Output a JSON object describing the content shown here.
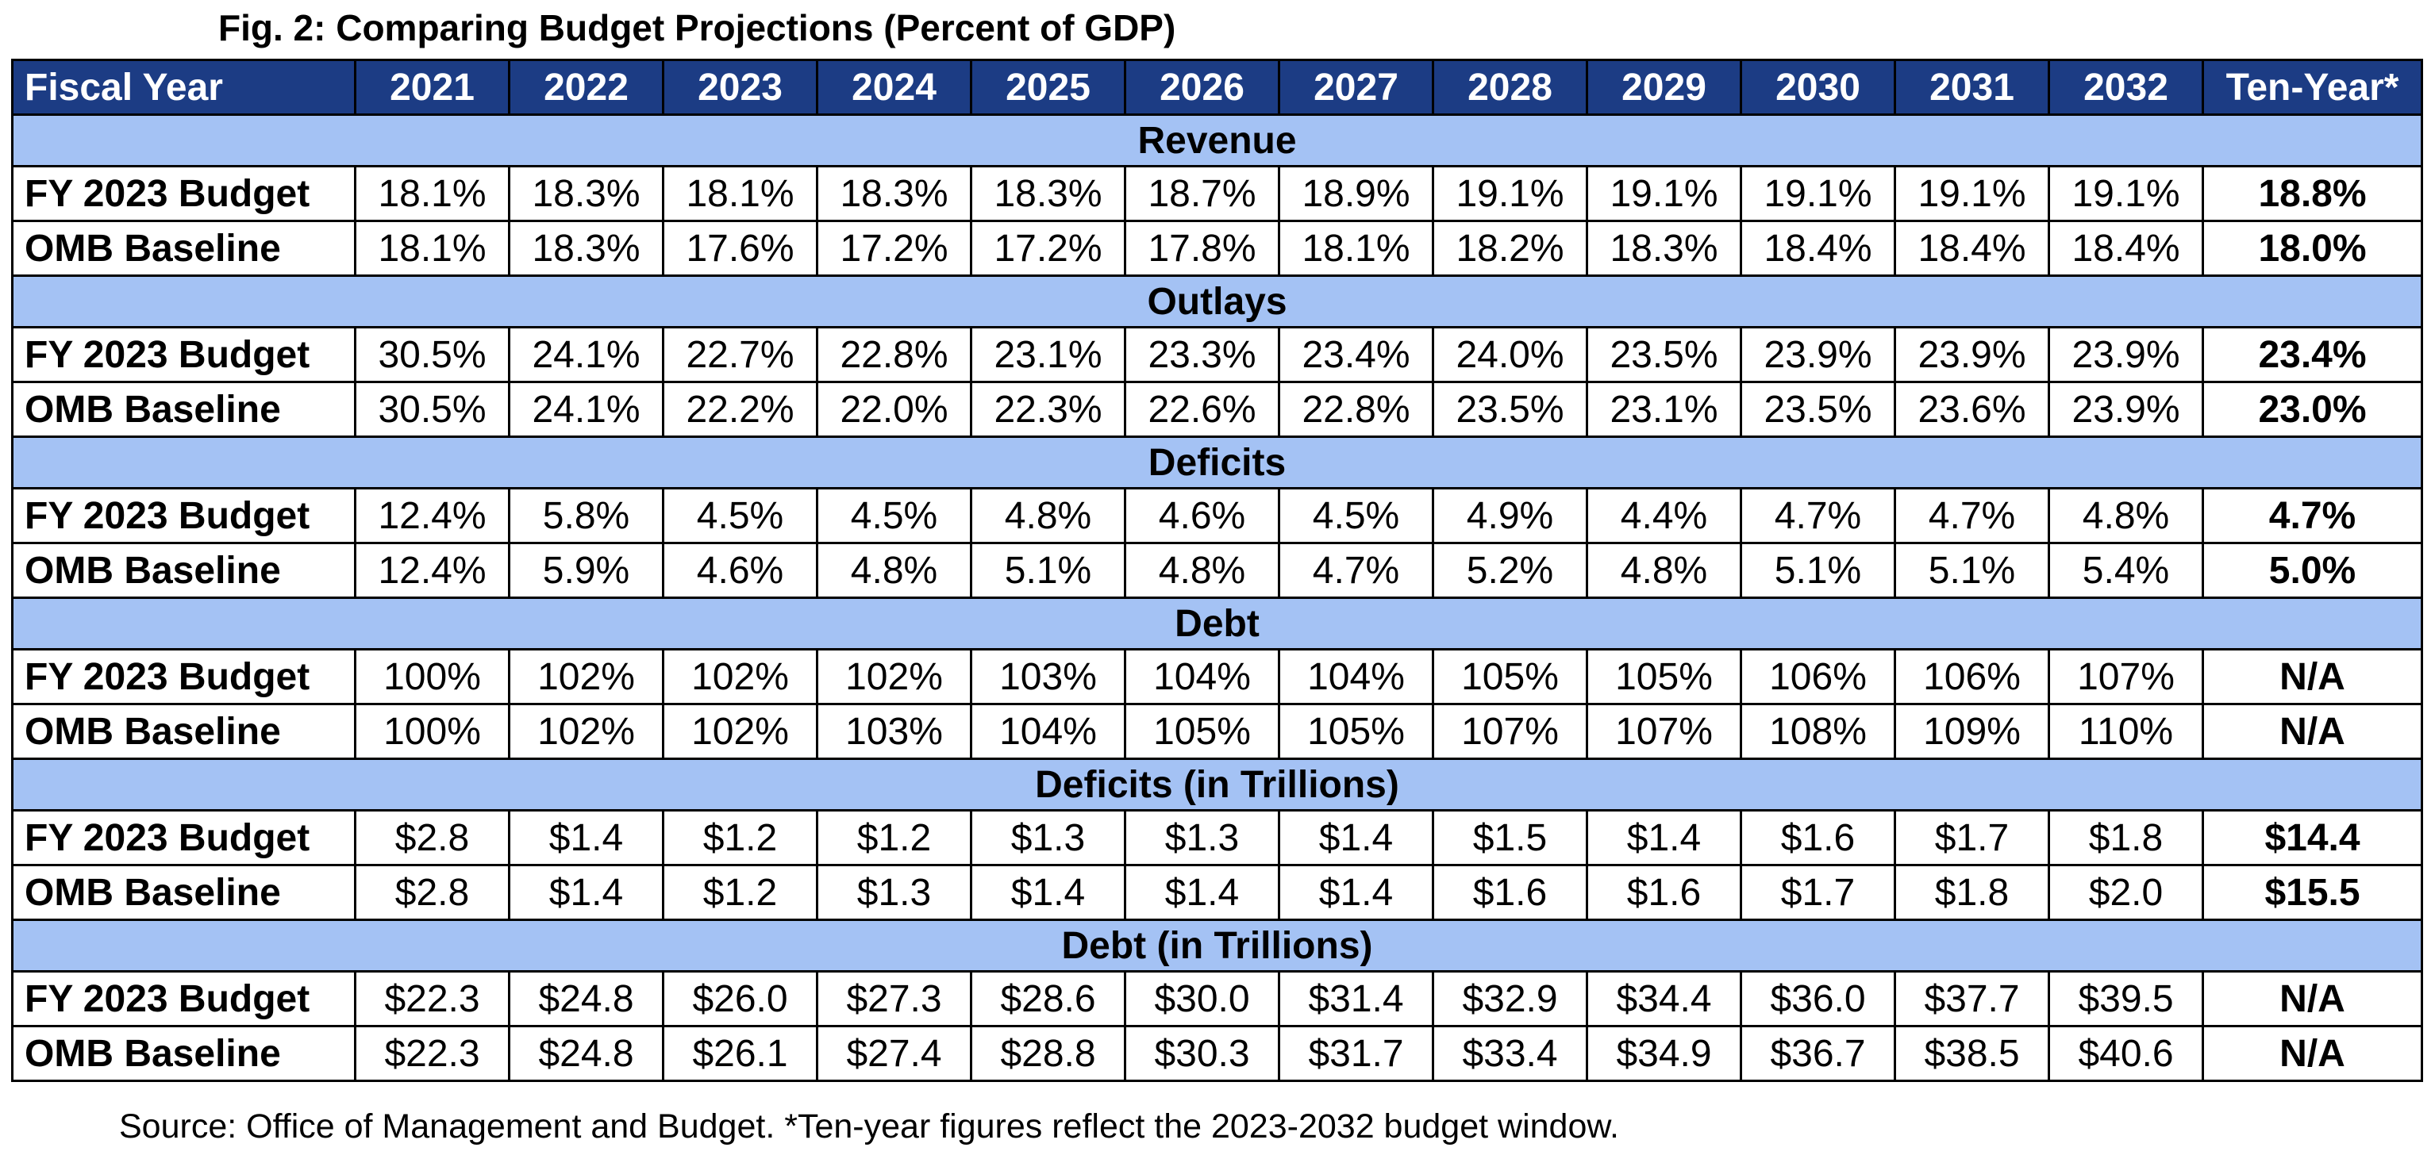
{
  "title": "Fig. 2: Comparing Budget Projections (Percent of GDP)",
  "header": [
    "Fiscal Year",
    "2021",
    "2022",
    "2023",
    "2024",
    "2025",
    "2026",
    "2027",
    "2028",
    "2029",
    "2030",
    "2031",
    "2032",
    "Ten-Year*"
  ],
  "sections": [
    {
      "title": "Revenue",
      "rows": [
        {
          "label": "FY 2023 Budget",
          "values": [
            "18.1%",
            "18.3%",
            "18.1%",
            "18.3%",
            "18.3%",
            "18.7%",
            "18.9%",
            "19.1%",
            "19.1%",
            "19.1%",
            "19.1%",
            "19.1%",
            "18.8%"
          ]
        },
        {
          "label": "OMB Baseline",
          "values": [
            "18.1%",
            "18.3%",
            "17.6%",
            "17.2%",
            "17.2%",
            "17.8%",
            "18.1%",
            "18.2%",
            "18.3%",
            "18.4%",
            "18.4%",
            "18.4%",
            "18.0%"
          ]
        }
      ]
    },
    {
      "title": "Outlays",
      "rows": [
        {
          "label": "FY 2023 Budget",
          "values": [
            "30.5%",
            "24.1%",
            "22.7%",
            "22.8%",
            "23.1%",
            "23.3%",
            "23.4%",
            "24.0%",
            "23.5%",
            "23.9%",
            "23.9%",
            "23.9%",
            "23.4%"
          ]
        },
        {
          "label": "OMB Baseline",
          "values": [
            "30.5%",
            "24.1%",
            "22.2%",
            "22.0%",
            "22.3%",
            "22.6%",
            "22.8%",
            "23.5%",
            "23.1%",
            "23.5%",
            "23.6%",
            "23.9%",
            "23.0%"
          ]
        }
      ]
    },
    {
      "title": "Deficits",
      "rows": [
        {
          "label": "FY 2023 Budget",
          "values": [
            "12.4%",
            "5.8%",
            "4.5%",
            "4.5%",
            "4.8%",
            "4.6%",
            "4.5%",
            "4.9%",
            "4.4%",
            "4.7%",
            "4.7%",
            "4.8%",
            "4.7%"
          ]
        },
        {
          "label": "OMB Baseline",
          "values": [
            "12.4%",
            "5.9%",
            "4.6%",
            "4.8%",
            "5.1%",
            "4.8%",
            "4.7%",
            "5.2%",
            "4.8%",
            "5.1%",
            "5.1%",
            "5.4%",
            "5.0%"
          ]
        }
      ]
    },
    {
      "title": "Debt",
      "rows": [
        {
          "label": "FY 2023 Budget",
          "values": [
            "100%",
            "102%",
            "102%",
            "102%",
            "103%",
            "104%",
            "104%",
            "105%",
            "105%",
            "106%",
            "106%",
            "107%",
            "N/A"
          ]
        },
        {
          "label": "OMB Baseline",
          "values": [
            "100%",
            "102%",
            "102%",
            "103%",
            "104%",
            "105%",
            "105%",
            "107%",
            "107%",
            "108%",
            "109%",
            "110%",
            "N/A"
          ]
        }
      ]
    },
    {
      "title": "Deficits (in Trillions)",
      "rows": [
        {
          "label": "FY 2023 Budget",
          "values": [
            "$2.8",
            "$1.4",
            "$1.2",
            "$1.2",
            "$1.3",
            "$1.3",
            "$1.4",
            "$1.5",
            "$1.4",
            "$1.6",
            "$1.7",
            "$1.8",
            "$14.4"
          ]
        },
        {
          "label": "OMB Baseline",
          "values": [
            "$2.8",
            "$1.4",
            "$1.2",
            "$1.3",
            "$1.4",
            "$1.4",
            "$1.4",
            "$1.6",
            "$1.6",
            "$1.7",
            "$1.8",
            "$2.0",
            "$15.5"
          ]
        }
      ]
    },
    {
      "title": "Debt (in Trillions)",
      "rows": [
        {
          "label": "FY 2023 Budget",
          "values": [
            "$22.3",
            "$24.8",
            "$26.0",
            "$27.3",
            "$28.6",
            "$30.0",
            "$31.4",
            "$32.9",
            "$34.4",
            "$36.0",
            "$37.7",
            "$39.5",
            "N/A"
          ]
        },
        {
          "label": "OMB Baseline",
          "values": [
            "$22.3",
            "$24.8",
            "$26.1",
            "$27.4",
            "$28.8",
            "$30.3",
            "$31.7",
            "$33.4",
            "$34.9",
            "$36.7",
            "$38.5",
            "$40.6",
            "N/A"
          ]
        }
      ]
    }
  ],
  "footer": "Source: Office of Management and Budget. *Ten-year figures reflect the 2023-2032 budget window."
}
